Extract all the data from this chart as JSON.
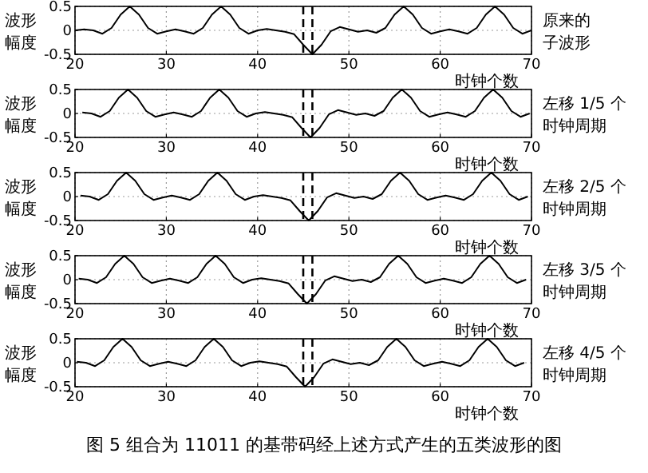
{
  "chart_data": [
    {
      "type": "line",
      "ylabel": "波形幅度",
      "xlabel": "时钟个数",
      "annotations": [
        "原来的子波形"
      ],
      "color": "#000000",
      "xlim": [
        20,
        70
      ],
      "ylim": [
        -0.5,
        0.5
      ],
      "xticks": [
        20,
        30,
        40,
        50,
        60,
        70
      ],
      "yticks": [
        -0.5,
        0,
        0.5
      ],
      "grid": true,
      "ref_lines": [
        {
          "axis": "x",
          "value": 45,
          "color": "#000000",
          "line_style": "dashed"
        },
        {
          "axis": "x",
          "value": 46,
          "color": "#000000",
          "line_style": "dashed"
        }
      ],
      "x": [
        20,
        21,
        22,
        23,
        24,
        25,
        26,
        27,
        28,
        29,
        30,
        31,
        32,
        33,
        34,
        35,
        36,
        37,
        38,
        39,
        40,
        41,
        42,
        43,
        44,
        45,
        46,
        47,
        48,
        49,
        50,
        51,
        52,
        53,
        54,
        55,
        56,
        57,
        58,
        59,
        60,
        61,
        62,
        63,
        64,
        65,
        66,
        67,
        68,
        69,
        70
      ],
      "values": [
        0,
        0.02,
        0,
        -0.07,
        0.05,
        0.33,
        0.5,
        0.33,
        0.05,
        -0.07,
        -0.02,
        0.02,
        -0.02,
        -0.07,
        0.05,
        0.33,
        0.5,
        0.33,
        0.05,
        -0.07,
        0,
        0.03,
        0,
        -0.03,
        -0.08,
        -0.3,
        -0.5,
        -0.3,
        -0.02,
        0.07,
        0.02,
        -0.03,
        0,
        -0.05,
        0.05,
        0.33,
        0.5,
        0.33,
        0.05,
        -0.07,
        -0.02,
        0.02,
        -0.02,
        -0.07,
        0.05,
        0.33,
        0.5,
        0.33,
        0.05,
        -0.07,
        0
      ]
    },
    {
      "type": "line",
      "ylabel": "波形幅度",
      "xlabel": "时钟个数",
      "annotations": [
        "左移 1/5 个时钟周期"
      ],
      "color": "#000000",
      "xlim": [
        20,
        70
      ],
      "ylim": [
        -0.5,
        0.5
      ],
      "xticks": [
        20,
        30,
        40,
        50,
        60,
        70
      ],
      "yticks": [
        -0.5,
        0,
        0.5
      ],
      "grid": true,
      "ref_lines": [
        {
          "axis": "x",
          "value": 45,
          "color": "#000000",
          "line_style": "dashed"
        },
        {
          "axis": "x",
          "value": 46,
          "color": "#000000",
          "line_style": "dashed"
        }
      ],
      "x": [
        20.8,
        21.8,
        22.8,
        23.8,
        24.8,
        25.8,
        26.8,
        27.8,
        28.8,
        29.8,
        30.8,
        31.8,
        32.8,
        33.8,
        34.8,
        35.8,
        36.8,
        37.8,
        38.8,
        39.8,
        40.8,
        41.8,
        42.8,
        43.8,
        44.8,
        45.8,
        46.8,
        47.8,
        48.8,
        49.8,
        50.8,
        51.8,
        52.8,
        53.8,
        54.8,
        55.8,
        56.8,
        57.8,
        58.8,
        59.8,
        60.8,
        61.8,
        62.8,
        63.8,
        64.8,
        65.8,
        66.8,
        67.8,
        68.8,
        69.8
      ],
      "values": [
        0.02,
        0,
        -0.07,
        0.05,
        0.33,
        0.5,
        0.33,
        0.05,
        -0.07,
        -0.02,
        0.02,
        -0.02,
        -0.07,
        0.05,
        0.33,
        0.5,
        0.33,
        0.05,
        -0.07,
        0,
        0.03,
        0,
        -0.03,
        -0.08,
        -0.3,
        -0.5,
        -0.3,
        -0.02,
        0.07,
        0.02,
        -0.03,
        0,
        -0.05,
        0.05,
        0.33,
        0.5,
        0.33,
        0.05,
        -0.07,
        -0.02,
        0.02,
        -0.02,
        -0.07,
        0.05,
        0.33,
        0.5,
        0.33,
        0.05,
        -0.07,
        0
      ]
    },
    {
      "type": "line",
      "ylabel": "波形幅度",
      "xlabel": "时钟个数",
      "annotations": [
        "左移 2/5 个时钟周期"
      ],
      "color": "#000000",
      "xlim": [
        20,
        70
      ],
      "ylim": [
        -0.5,
        0.5
      ],
      "xticks": [
        20,
        30,
        40,
        50,
        60,
        70
      ],
      "yticks": [
        -0.5,
        0,
        0.5
      ],
      "grid": true,
      "ref_lines": [
        {
          "axis": "x",
          "value": 45,
          "color": "#000000",
          "line_style": "dashed"
        },
        {
          "axis": "x",
          "value": 46,
          "color": "#000000",
          "line_style": "dashed"
        }
      ],
      "x": [
        20.6,
        21.6,
        22.6,
        23.6,
        24.6,
        25.6,
        26.6,
        27.6,
        28.6,
        29.6,
        30.6,
        31.6,
        32.6,
        33.6,
        34.6,
        35.6,
        36.6,
        37.6,
        38.6,
        39.6,
        40.6,
        41.6,
        42.6,
        43.6,
        44.6,
        45.6,
        46.6,
        47.6,
        48.6,
        49.6,
        50.6,
        51.6,
        52.6,
        53.6,
        54.6,
        55.6,
        56.6,
        57.6,
        58.6,
        59.6,
        60.6,
        61.6,
        62.6,
        63.6,
        64.6,
        65.6,
        66.6,
        67.6,
        68.6,
        69.6
      ],
      "values": [
        0.02,
        0,
        -0.07,
        0.05,
        0.33,
        0.5,
        0.33,
        0.05,
        -0.07,
        -0.02,
        0.02,
        -0.02,
        -0.07,
        0.05,
        0.33,
        0.5,
        0.33,
        0.05,
        -0.07,
        0,
        0.03,
        0,
        -0.03,
        -0.08,
        -0.3,
        -0.5,
        -0.3,
        -0.02,
        0.07,
        0.02,
        -0.03,
        0,
        -0.05,
        0.05,
        0.33,
        0.5,
        0.33,
        0.05,
        -0.07,
        -0.02,
        0.02,
        -0.02,
        -0.07,
        0.05,
        0.33,
        0.5,
        0.33,
        0.05,
        -0.07,
        0
      ]
    },
    {
      "type": "line",
      "ylabel": "波形幅度",
      "xlabel": "时钟个数",
      "annotations": [
        "左移 3/5 个时钟周期"
      ],
      "color": "#000000",
      "xlim": [
        20,
        70
      ],
      "ylim": [
        -0.5,
        0.5
      ],
      "xticks": [
        20,
        30,
        40,
        50,
        60,
        70
      ],
      "yticks": [
        -0.5,
        0,
        0.5
      ],
      "grid": true,
      "ref_lines": [
        {
          "axis": "x",
          "value": 45,
          "color": "#000000",
          "line_style": "dashed"
        },
        {
          "axis": "x",
          "value": 46,
          "color": "#000000",
          "line_style": "dashed"
        }
      ],
      "x": [
        20.4,
        21.4,
        22.4,
        23.4,
        24.4,
        25.4,
        26.4,
        27.4,
        28.4,
        29.4,
        30.4,
        31.4,
        32.4,
        33.4,
        34.4,
        35.4,
        36.4,
        37.4,
        38.4,
        39.4,
        40.4,
        41.4,
        42.4,
        43.4,
        44.4,
        45.4,
        46.4,
        47.4,
        48.4,
        49.4,
        50.4,
        51.4,
        52.4,
        53.4,
        54.4,
        55.4,
        56.4,
        57.4,
        58.4,
        59.4,
        60.4,
        61.4,
        62.4,
        63.4,
        64.4,
        65.4,
        66.4,
        67.4,
        68.4,
        69.4
      ],
      "values": [
        0.02,
        0,
        -0.07,
        0.05,
        0.33,
        0.5,
        0.33,
        0.05,
        -0.07,
        -0.02,
        0.02,
        -0.02,
        -0.07,
        0.05,
        0.33,
        0.5,
        0.33,
        0.05,
        -0.07,
        0,
        0.03,
        0,
        -0.03,
        -0.08,
        -0.3,
        -0.5,
        -0.3,
        -0.02,
        0.07,
        0.02,
        -0.03,
        0,
        -0.05,
        0.05,
        0.33,
        0.5,
        0.33,
        0.05,
        -0.07,
        -0.02,
        0.02,
        -0.02,
        -0.07,
        0.05,
        0.33,
        0.5,
        0.33,
        0.05,
        -0.07,
        0
      ]
    },
    {
      "type": "line",
      "ylabel": "波形幅度",
      "xlabel": "时钟个数",
      "annotations": [
        "左移 4/5 个时钟周期",
        "图 5 组合为 11011 的基带码经上述方式产生的五类波形的图"
      ],
      "color": "#000000",
      "xlim": [
        20,
        70
      ],
      "ylim": [
        -0.5,
        0.5
      ],
      "xticks": [
        20,
        30,
        40,
        50,
        60,
        70
      ],
      "yticks": [
        -0.5,
        0,
        0.5
      ],
      "grid": true,
      "ref_lines": [
        {
          "axis": "x",
          "value": 45,
          "color": "#000000",
          "line_style": "dashed"
        },
        {
          "axis": "x",
          "value": 46,
          "color": "#000000",
          "line_style": "dashed"
        }
      ],
      "x": [
        20.2,
        21.2,
        22.2,
        23.2,
        24.2,
        25.2,
        26.2,
        27.2,
        28.2,
        29.2,
        30.2,
        31.2,
        32.2,
        33.2,
        34.2,
        35.2,
        36.2,
        37.2,
        38.2,
        39.2,
        40.2,
        41.2,
        42.2,
        43.2,
        44.2,
        45.2,
        46.2,
        47.2,
        48.2,
        49.2,
        50.2,
        51.2,
        52.2,
        53.2,
        54.2,
        55.2,
        56.2,
        57.2,
        58.2,
        59.2,
        60.2,
        61.2,
        62.2,
        63.2,
        64.2,
        65.2,
        66.2,
        67.2,
        68.2,
        69.2
      ],
      "values": [
        0.02,
        0,
        -0.07,
        0.05,
        0.33,
        0.5,
        0.33,
        0.05,
        -0.07,
        -0.02,
        0.02,
        -0.02,
        -0.07,
        0.05,
        0.33,
        0.5,
        0.33,
        0.05,
        -0.07,
        0,
        0.03,
        0,
        -0.03,
        -0.08,
        -0.3,
        -0.5,
        -0.3,
        -0.02,
        0.07,
        0.02,
        -0.03,
        0,
        -0.05,
        0.05,
        0.33,
        0.5,
        0.33,
        0.05,
        -0.07,
        -0.02,
        0.02,
        -0.02,
        -0.07,
        0.05,
        0.33,
        0.5,
        0.33,
        0.05,
        -0.07,
        0
      ]
    }
  ]
}
